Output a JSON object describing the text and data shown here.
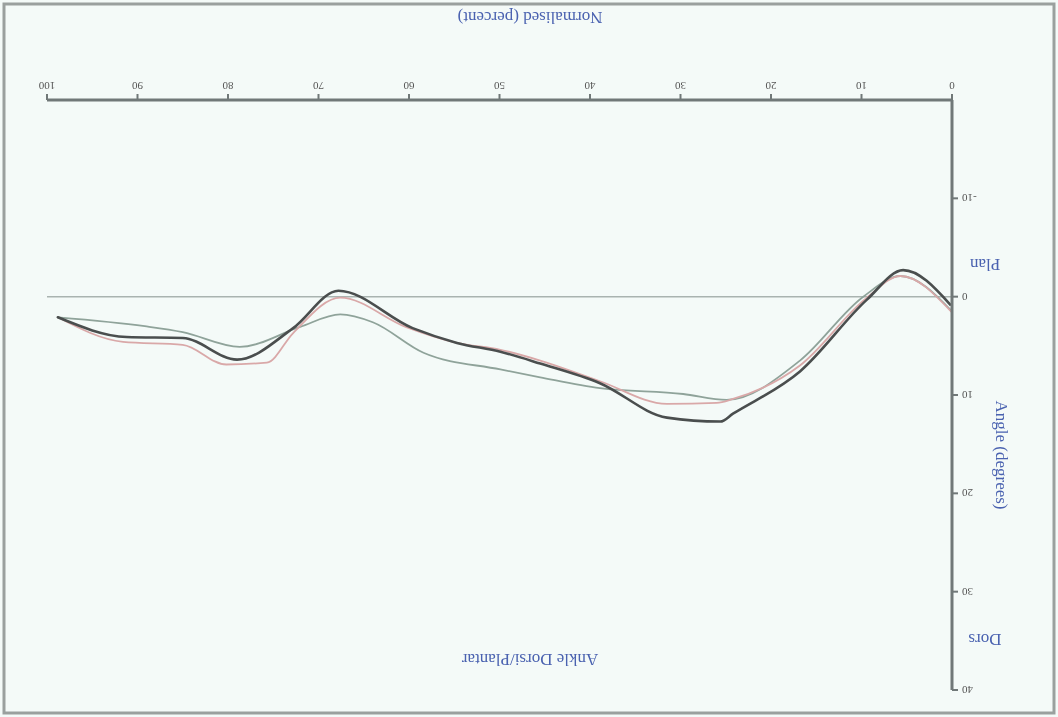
{
  "chart_data": {
    "type": "line",
    "title": "Ankle Dorsi/Plantar",
    "xlabel": "Normalised (percent)",
    "ylabel": "Angle (degrees)",
    "annotations": [
      "Dors",
      "Plan"
    ],
    "xlim": [
      100,
      0
    ],
    "xticks": [
      0,
      10,
      20,
      30,
      40,
      50,
      60,
      70,
      80,
      90,
      100
    ],
    "ylim": [
      40,
      -20
    ],
    "yticks": [
      -10,
      0,
      10,
      20,
      30,
      40
    ],
    "grid": false,
    "line_style": "solid",
    "ref_lines": [
      {
        "axis": "y",
        "value": 0,
        "color": "#a9b3b0"
      }
    ],
    "series": [
      {
        "color": "#8fa39a",
        "x": [
          0,
          5.7,
          9.8,
          16.8,
          24.9,
          29.7,
          38.9,
          45.5,
          49.9,
          58.4,
          64.0,
          67.6,
          72.1,
          78.7,
          85.0,
          89.2,
          98.8
        ],
        "values": [
          1.5,
          -2.1,
          0,
          6.5,
          10.5,
          9.9,
          9.3,
          8.2,
          7.4,
          5.7,
          2.6,
          1.8,
          3.1,
          5.1,
          3.6,
          3.0,
          2.1
        ]
      },
      {
        "color": "#d9a8a8",
        "x": [
          0,
          5.7,
          9.4,
          16.8,
          24.2,
          26.0,
          31.5,
          38.9,
          45.5,
          49.9,
          54.7,
          60.3,
          67.6,
          72.8,
          75.7,
          80.2,
          85.0,
          91.6,
          98.8
        ],
        "values": [
          1.6,
          -2.1,
          0.1,
          7.0,
          10.4,
          10.8,
          10.9,
          8.6,
          6.5,
          5.4,
          4.7,
          3.1,
          0.1,
          3.7,
          6.7,
          6.9,
          4.9,
          4.6,
          2.1
        ]
      },
      {
        "color": "#4a4e4e",
        "x": [
          0.2,
          5.4,
          9.4,
          16.8,
          24.2,
          25.6,
          31.5,
          38.9,
          45.5,
          49.9,
          54.7,
          59.6,
          67.8,
          72.8,
          79.0,
          85.0,
          91.2,
          98.8
        ],
        "values": [
          0.8,
          -2.7,
          0.3,
          7.6,
          11.9,
          12.7,
          12.3,
          8.8,
          6.8,
          5.6,
          4.7,
          3.2,
          -0.6,
          3.2,
          6.4,
          4.2,
          4.1,
          2.1
        ]
      }
    ]
  }
}
